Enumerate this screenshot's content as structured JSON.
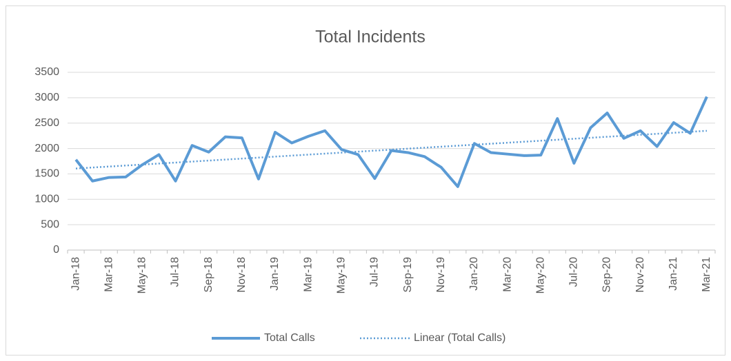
{
  "chart_data": {
    "type": "line",
    "title": "Total Incidents",
    "categories": [
      "Jan-18",
      null,
      "Mar-18",
      null,
      "May-18",
      null,
      "Jul-18",
      null,
      "Sep-18",
      null,
      "Nov-18",
      null,
      "Jan-19",
      null,
      "Mar-19",
      null,
      "May-19",
      null,
      "Jul-19",
      null,
      "Sep-19",
      null,
      "Nov-19",
      null,
      "Jan-20",
      null,
      "Mar-20",
      null,
      "May-20",
      null,
      "Jul-20",
      null,
      "Sep-20",
      null,
      "Nov-20",
      null,
      "Jan-21",
      null,
      "Mar-21"
    ],
    "series": [
      {
        "name": "Total Calls",
        "color": "#5b9bd5",
        "values": [
          1780,
          1360,
          1430,
          1440,
          1680,
          1880,
          1360,
          2060,
          1930,
          2230,
          2210,
          1400,
          2320,
          2110,
          2240,
          2350,
          1980,
          1880,
          1410,
          1960,
          1920,
          1840,
          1630,
          1250,
          2100,
          1920,
          1890,
          1860,
          1870,
          2590,
          1710,
          2410,
          2700,
          2200,
          2350,
          2040,
          2510,
          2300,
          3020
        ]
      }
    ],
    "trendline": {
      "name": "Linear (Total Calls)",
      "type": "linear",
      "color": "#5b9bd5"
    },
    "ylim": [
      0,
      3500
    ],
    "yticks": [
      0,
      500,
      1000,
      1500,
      2000,
      2500,
      3000,
      3500
    ],
    "grid": true,
    "legend": "bottom"
  }
}
